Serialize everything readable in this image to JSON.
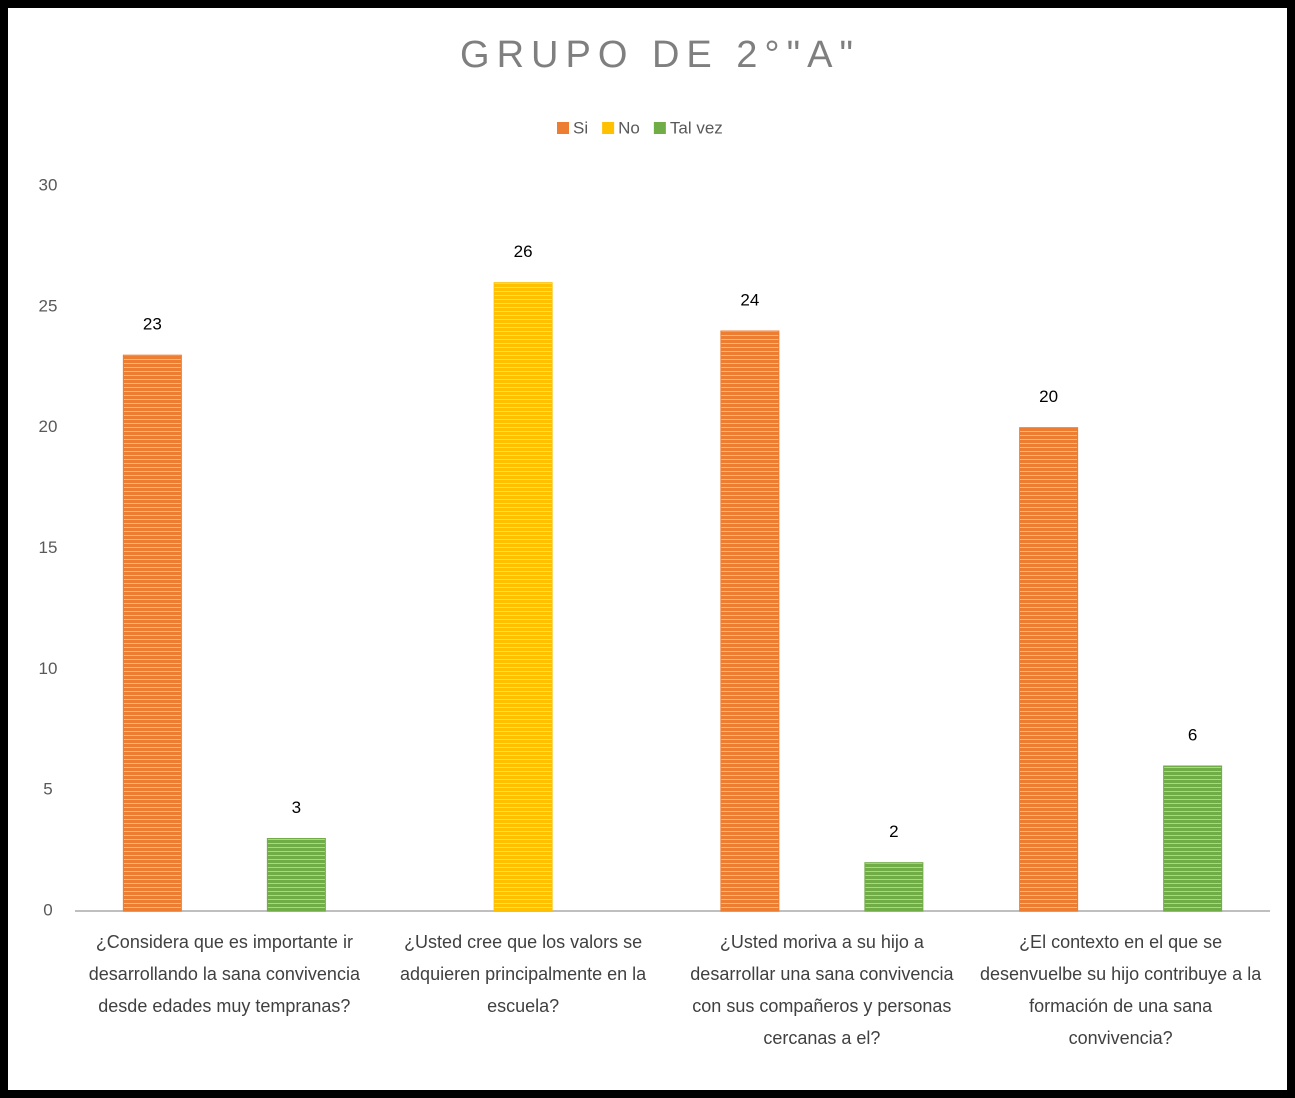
{
  "chart_data": {
    "type": "bar",
    "title": "GRUPO DE 2°\"A\"",
    "categories": [
      "¿Considera que es importante ir desarrollando la sana convivencia desde edades muy tempranas?",
      "¿Usted cree que los valors se adquieren principalmente en la escuela?",
      "¿Usted moriva a su hijo a desarrollar una sana convivencia con sus compañeros y personas cercanas a el?",
      "¿El contexto en el que se desenvuelbe su hijo contribuye a la formación de una sana convivencia?"
    ],
    "series": [
      {
        "name": "Si",
        "color": "#ed7d31",
        "values": [
          23,
          null,
          24,
          20
        ]
      },
      {
        "name": "No",
        "color": "#ffc000",
        "values": [
          null,
          26,
          null,
          null
        ]
      },
      {
        "name": "Tal vez",
        "color": "#70ad47",
        "values": [
          3,
          null,
          2,
          6
        ]
      }
    ],
    "ylim": [
      0,
      30
    ],
    "yticks": [
      0,
      5,
      10,
      15,
      20,
      25,
      30
    ],
    "grid": false,
    "legend": "top"
  }
}
